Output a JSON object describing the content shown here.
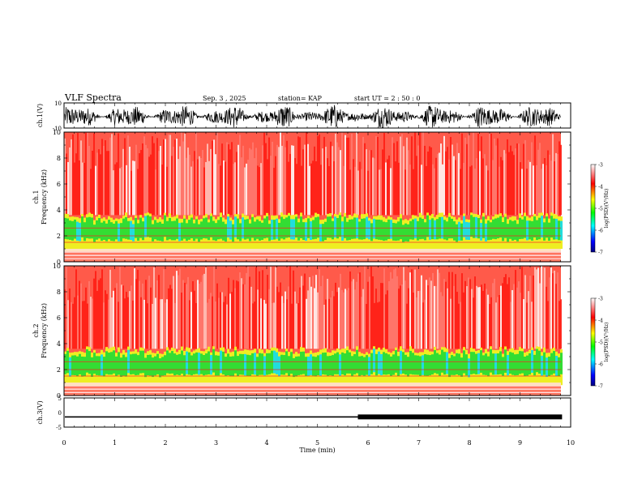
{
  "header": {
    "title": "VLF Spectra",
    "date": "Sep. 3 , 2025",
    "station": "station= KAP",
    "start": "start UT = 2 : 50 : 0"
  },
  "colors": {
    "spectrogram_bg": "#ff3020",
    "spectrogram_high": "#ff0000",
    "band_green": "#33dd33",
    "band_yellow": "#eeee22",
    "band_cyan": "#22dddd",
    "trace": "#000000"
  },
  "colorbar_stops": [
    "#000080",
    "#0000ff",
    "#00ffff",
    "#00ff00",
    "#ffff00",
    "#ff0000",
    "#ffffff"
  ],
  "chart_data": [
    {
      "type": "line",
      "panel": "ch1-waveform",
      "ylabel": "ch.1(V)",
      "ylim": [
        -10,
        10
      ],
      "yticks": [
        "10",
        "-10"
      ],
      "xlim": [
        0,
        10
      ],
      "description_values": {
        "amplitude_approx": 8,
        "offset": -1
      }
    },
    {
      "type": "heatmap",
      "panel": "ch1-spectrogram",
      "ylabel": "ch.1\nFrequency (kHz)",
      "ylim": [
        0,
        10
      ],
      "yticks": [
        "0",
        "2",
        "4",
        "6",
        "8",
        "10"
      ],
      "xlim": [
        0,
        9.83
      ],
      "colorbar": {
        "label": "log(PSD)(V²/Hz)",
        "range": [
          -7,
          -3
        ],
        "ticks": [
          "-3",
          "-4",
          "-5",
          "-6",
          "-7"
        ]
      },
      "bands_khz": [
        [
          1.0,
          3.5
        ]
      ]
    },
    {
      "type": "heatmap",
      "panel": "ch2-spectrogram",
      "ylabel": "ch.2\nFrequency (kHz)",
      "ylim": [
        0,
        10
      ],
      "yticks": [
        "0",
        "2",
        "4",
        "6",
        "8",
        "10"
      ],
      "xlim": [
        0,
        9.83
      ],
      "colorbar": {
        "label": "log(PSD)(V²/Hz)",
        "range": [
          -7,
          -3
        ],
        "ticks": [
          "-3",
          "-4",
          "-5",
          "-6",
          "-7"
        ]
      },
      "bands_khz": [
        [
          0.8,
          3.5
        ]
      ]
    },
    {
      "type": "line",
      "panel": "ch3-waveform",
      "ylabel": "ch.3(V)",
      "ylim": [
        -5,
        5
      ],
      "yticks": [
        "5",
        "0",
        "-5"
      ],
      "xlim": [
        0,
        10
      ],
      "xlabel": "Time (min)",
      "xticks": [
        "0",
        "1",
        "2",
        "3",
        "4",
        "5",
        "6",
        "7",
        "8",
        "9",
        "10"
      ],
      "segments": [
        {
          "t_start": 0,
          "t_end": 5.8,
          "value": -1.5
        },
        {
          "t_start": 5.8,
          "t_end": 9.83,
          "value": -1.5,
          "band": true
        }
      ]
    }
  ]
}
